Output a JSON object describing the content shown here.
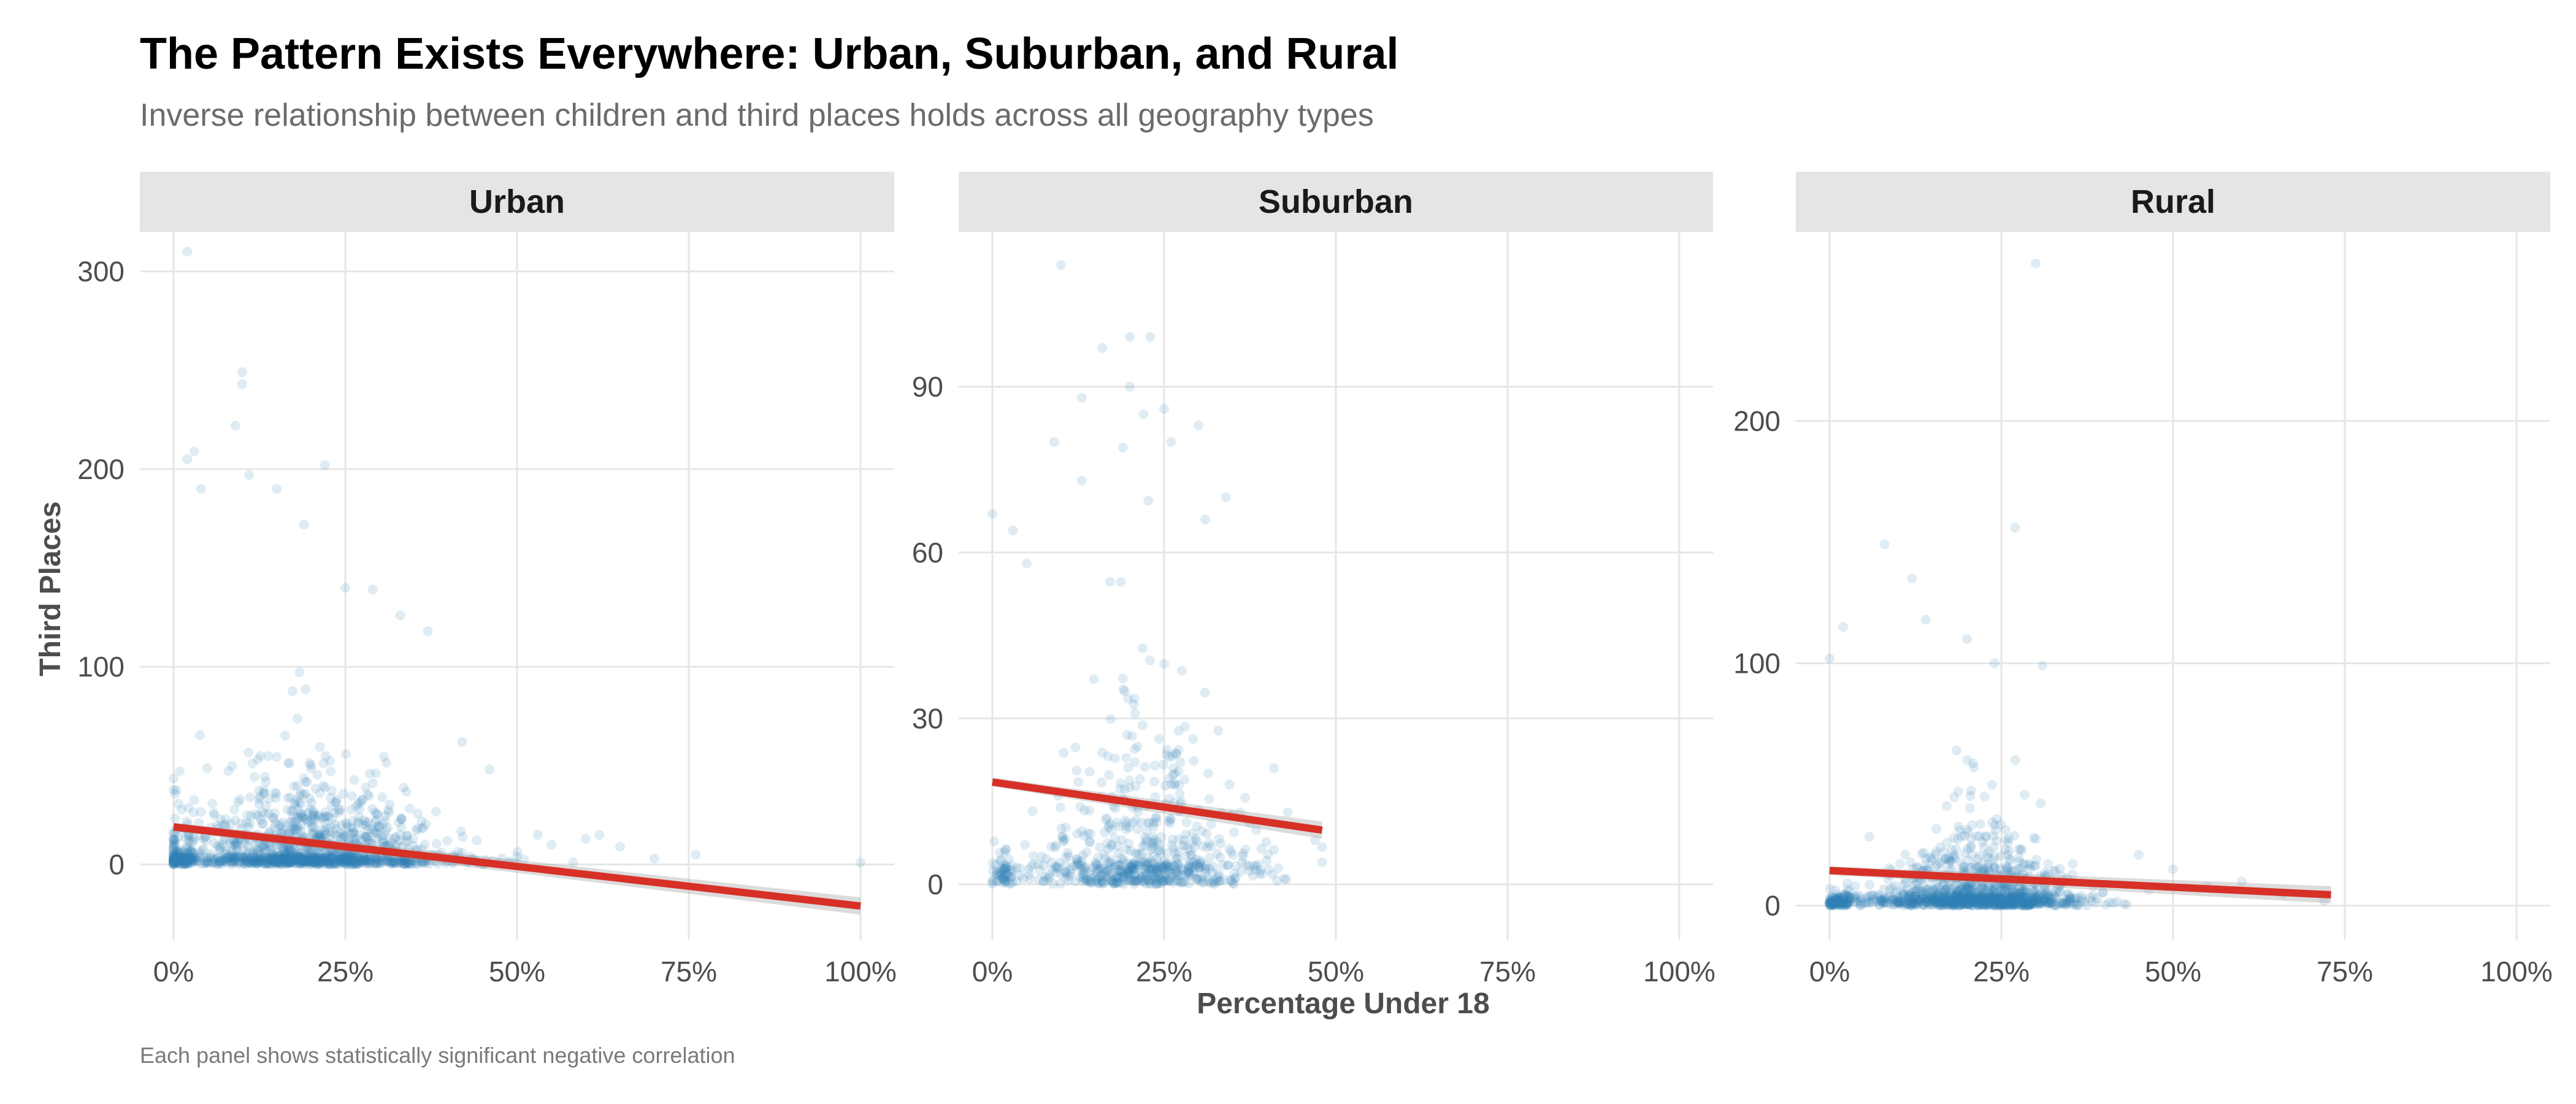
{
  "colors": {
    "point": "#2e7eb8",
    "trend": "#d73027",
    "strip": "#e5e5e5",
    "grid": "#e6e6e6"
  },
  "chart_data": {
    "type": "scatter",
    "title": "The Pattern Exists Everywhere: Urban, Suburban, and Rural",
    "subtitle": "Inverse relationship between children and third places holds across all geography types",
    "caption": "Each panel shows statistically significant negative correlation",
    "xlabel": "Percentage Under 18",
    "ylabel": "Third Places",
    "xlim": [
      0,
      1
    ],
    "xticks": [
      0,
      0.25,
      0.5,
      0.75,
      1.0
    ],
    "xtick_labels": [
      "0%",
      "25%",
      "50%",
      "75%",
      "100%"
    ],
    "point_opacity": 0.15,
    "panels": [
      {
        "name": "Urban",
        "ylim": [
          -38,
          320
        ],
        "yticks": [
          0,
          100,
          200,
          300
        ],
        "ytick_labels": [
          "0",
          "100",
          "200",
          "300"
        ],
        "trend": {
          "x0": 0,
          "y0": 19,
          "x1": 1.0,
          "y1": -21
        },
        "cluster": {
          "x_center": 0.2,
          "x_spread": 0.1,
          "x_max": 0.62,
          "y_scale": 20,
          "y_max": 200,
          "density": 1400
        },
        "outliers": [
          [
            0.02,
            310
          ],
          [
            0.1,
            249
          ],
          [
            0.1,
            243
          ],
          [
            0.09,
            222
          ],
          [
            0.03,
            209
          ],
          [
            0.02,
            205
          ],
          [
            0.22,
            202
          ],
          [
            0.11,
            197
          ],
          [
            0.04,
            190
          ],
          [
            0.15,
            190
          ],
          [
            0.19,
            172
          ],
          [
            0.25,
            140
          ],
          [
            0.33,
            126
          ],
          [
            0.37,
            118
          ],
          [
            0.29,
            139
          ],
          [
            0.42,
            62
          ],
          [
            0.46,
            48
          ],
          [
            0.53,
            15
          ],
          [
            0.55,
            10
          ],
          [
            0.6,
            13
          ],
          [
            0.62,
            15
          ],
          [
            0.65,
            9
          ],
          [
            0.7,
            3
          ],
          [
            0.76,
            5
          ],
          [
            1.0,
            1
          ]
        ]
      },
      {
        "name": "Suburban",
        "ylim": [
          -10,
          118
        ],
        "yticks": [
          0,
          30,
          60,
          90
        ],
        "ytick_labels": [
          "0",
          "30",
          "60",
          "90"
        ],
        "trend": {
          "x0": 0,
          "y0": 18.5,
          "x1": 0.48,
          "y1": 9.8
        },
        "cluster": {
          "x_center": 0.22,
          "x_spread": 0.08,
          "x_max": 0.48,
          "y_scale": 12,
          "y_max": 75,
          "density": 700
        },
        "outliers": [
          [
            0.1,
            112
          ],
          [
            0.2,
            99
          ],
          [
            0.23,
            99
          ],
          [
            0.16,
            97
          ],
          [
            0.2,
            90
          ],
          [
            0.13,
            88
          ],
          [
            0.25,
            86
          ],
          [
            0.22,
            85
          ],
          [
            0.3,
            83
          ],
          [
            0.26,
            80
          ],
          [
            0.09,
            80
          ],
          [
            0.19,
            79
          ],
          [
            0.13,
            73
          ],
          [
            0.34,
            70
          ],
          [
            0.0,
            67
          ],
          [
            0.03,
            64
          ],
          [
            0.05,
            58
          ],
          [
            0.31,
            66
          ],
          [
            0.41,
            21
          ],
          [
            0.43,
            13
          ],
          [
            0.47,
            8
          ],
          [
            0.48,
            4
          ]
        ]
      },
      {
        "name": "Rural",
        "ylim": [
          -14,
          278
        ],
        "yticks": [
          0,
          100,
          200
        ],
        "ytick_labels": [
          "0",
          "100",
          "200"
        ],
        "trend": {
          "x0": 0,
          "y0": 14.5,
          "x1": 0.73,
          "y1": 4.5
        },
        "cluster": {
          "x_center": 0.21,
          "x_spread": 0.075,
          "x_max": 0.72,
          "y_scale": 12,
          "y_max": 120,
          "density": 1300
        },
        "outliers": [
          [
            0.3,
            265
          ],
          [
            0.27,
            156
          ],
          [
            0.08,
            149
          ],
          [
            0.12,
            135
          ],
          [
            0.14,
            118
          ],
          [
            0.02,
            115
          ],
          [
            0.0,
            102
          ],
          [
            0.31,
            99
          ],
          [
            0.2,
            110
          ],
          [
            0.24,
            100
          ],
          [
            0.45,
            21
          ],
          [
            0.5,
            15
          ],
          [
            0.55,
            8
          ],
          [
            0.6,
            10
          ],
          [
            0.66,
            5
          ],
          [
            0.72,
            2
          ]
        ]
      }
    ]
  }
}
